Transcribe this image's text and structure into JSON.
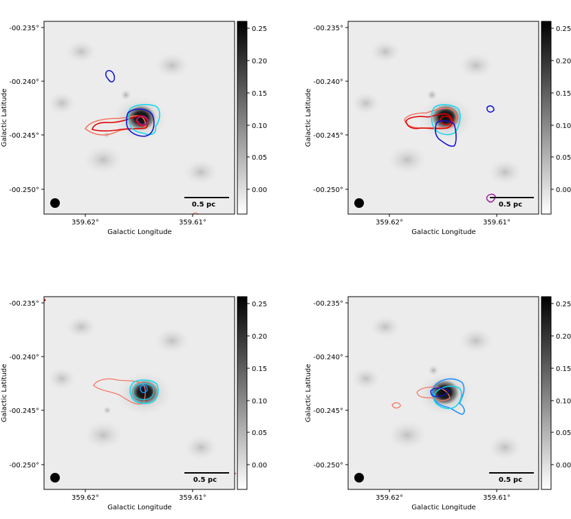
{
  "colors": {
    "image_light": "#ececec",
    "image_dark": "#0d0d0d",
    "bar_top": "#000000",
    "bar_bottom": "#ffffff",
    "frame": "#000000",
    "red": "#e00000",
    "salmon": "#f47560",
    "blue": "#1010d0",
    "cyan": "#10d8f0",
    "sky": "#1e90ff",
    "magenta": "#a020a0"
  },
  "panels": [
    {
      "name": "top-left",
      "y_axis_label": "Galactic Latitude",
      "x_axis_label": "Galactic Longitude",
      "scalebar_label": "0.5 pc",
      "y_ticks": [
        "-00.235°",
        "-00.240°",
        "-00.245°",
        "-00.250°"
      ],
      "x_ticks": [
        "359.62°",
        "359.61°"
      ],
      "colorbar_ticks": [
        "0.25",
        "0.20",
        "0.15",
        "0.10",
        "0.05",
        "0.00"
      ]
    },
    {
      "name": "top-right",
      "y_axis_label": "Galactic Latitude",
      "x_axis_label": "Galactic Longitude",
      "scalebar_label": "0.5 pc",
      "y_ticks": [
        "-00.235°",
        "-00.240°",
        "-00.245°",
        "-00.250°"
      ],
      "x_ticks": [
        "359.62°",
        "359.61°"
      ],
      "colorbar_ticks": [
        "0.25",
        "0.20",
        "0.15",
        "0.10",
        "0.05",
        "0.00"
      ]
    },
    {
      "name": "bottom-left",
      "y_axis_label": "Galactic Latitude",
      "x_axis_label": "Galactic Longitude",
      "scalebar_label": "0.5 pc",
      "y_ticks": [
        "-00.235°",
        "-00.240°",
        "-00.245°",
        "-00.250°"
      ],
      "x_ticks": [
        "359.62°",
        "359.61°"
      ],
      "colorbar_ticks": [
        "0.25",
        "0.20",
        "0.15",
        "0.10",
        "0.05",
        "0.00"
      ]
    },
    {
      "name": "bottom-right",
      "y_axis_label": "Galactic Latitude",
      "x_axis_label": "Galactic Longitude",
      "scalebar_label": "0.5 pc",
      "y_ticks": [
        "-00.235°",
        "-00.240°",
        "-00.245°",
        "-00.250°"
      ],
      "x_ticks": [
        "359.62°",
        "359.61°"
      ],
      "colorbar_ticks": [
        "0.25",
        "0.20",
        "0.15",
        "0.10",
        "0.05",
        "0.00"
      ]
    }
  ],
  "chart_data": {
    "type": "heatmap",
    "panel_count": 4,
    "xlabel": "Galactic Longitude",
    "ylabel": "Galactic Latitude",
    "x_ticks": [
      "359.62°",
      "359.61°"
    ],
    "y_ticks": [
      "-00.235°",
      "-00.240°",
      "-00.245°",
      "-00.250°"
    ],
    "colorbar_ticks": [
      0.25,
      0.2,
      0.15,
      0.1,
      0.05,
      0.0
    ],
    "colorbar_range": [
      -0.03,
      0.26
    ],
    "colormap": "gray_r",
    "scalebar": "0.5 pc",
    "beam": "filled black circle, bottom-left"
  }
}
